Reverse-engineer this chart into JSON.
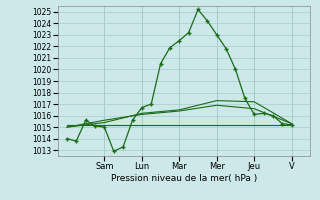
{
  "title": "",
  "xlabel": "Pression niveau de la mer( hPa )",
  "ylabel": "",
  "bg_color": "#cce8e8",
  "grid_color": "#aacccc",
  "line_color": "#1a6b1a",
  "ylim": [
    1012.5,
    1025.5
  ],
  "xlim": [
    -0.5,
    13
  ],
  "yticks": [
    1013,
    1014,
    1015,
    1016,
    1017,
    1018,
    1019,
    1020,
    1021,
    1022,
    1023,
    1024,
    1025
  ],
  "day_labels": [
    "Sam",
    "Lun",
    "Mar",
    "Mer",
    "Jeu",
    "V"
  ],
  "day_positions": [
    2,
    4,
    6,
    8,
    10,
    12
  ],
  "series1_x": [
    0,
    0.5,
    1,
    1.5,
    2,
    2.5,
    3,
    3.5,
    4,
    4.5,
    5,
    5.5,
    6,
    6.5,
    7,
    7.5,
    8,
    8.5,
    9,
    9.5,
    10,
    10.5,
    11,
    11.5,
    12
  ],
  "series1_y": [
    1014.0,
    1013.8,
    1015.6,
    1015.1,
    1015.0,
    1012.9,
    1013.3,
    1015.6,
    1016.7,
    1017.0,
    1020.5,
    1021.9,
    1022.5,
    1023.2,
    1025.2,
    1024.2,
    1023.0,
    1021.8,
    1020.0,
    1017.5,
    1016.1,
    1016.2,
    1016.0,
    1015.3,
    1015.2
  ],
  "series2_x": [
    0,
    2,
    4,
    6,
    8,
    10,
    12
  ],
  "series2_y": [
    1015.0,
    1015.4,
    1016.2,
    1016.5,
    1017.3,
    1017.2,
    1015.3
  ],
  "series3_x": [
    0,
    2,
    4,
    6,
    8,
    10,
    12
  ],
  "series3_y": [
    1015.0,
    1015.6,
    1016.1,
    1016.4,
    1016.9,
    1016.6,
    1015.3
  ],
  "series4_x": [
    0,
    12
  ],
  "series4_y": [
    1015.2,
    1015.2
  ]
}
